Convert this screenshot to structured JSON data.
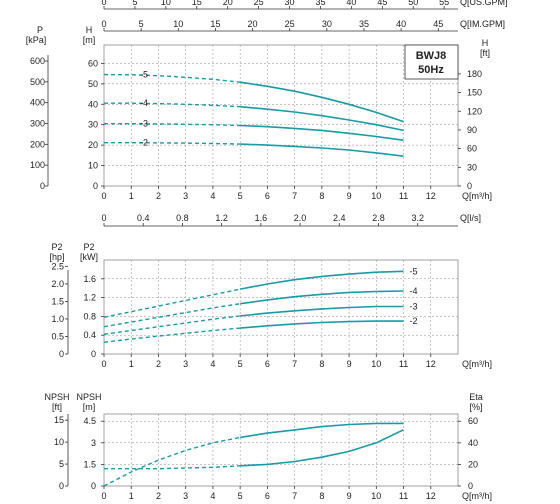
{
  "chart_data": [
    {
      "type": "line",
      "model_label": "BWJ8",
      "freq_label": "50Hz",
      "top_axes": [
        {
          "label": "Q[US.GPM]",
          "ticks": [
            0,
            5,
            10,
            15,
            20,
            25,
            30,
            35,
            40,
            45,
            50,
            55
          ]
        },
        {
          "label": "Q[IM.GPM]",
          "ticks": [
            0,
            5,
            10,
            15,
            20,
            25,
            30,
            35,
            40,
            45
          ]
        }
      ],
      "xlabel": "Q[m³/h]",
      "x_ticks": [
        0,
        1,
        2,
        3,
        4,
        5,
        6,
        7,
        8,
        9,
        10,
        11,
        12
      ],
      "xlim": [
        0,
        13
      ],
      "x2label": "Q[l/s]",
      "x2_ticks": [
        "0",
        "0.4",
        "0.8",
        "1.2",
        "1.6",
        "2.0",
        "2.4",
        "2.8",
        "3.2"
      ],
      "ylabel_p": "P [kPa]",
      "p_ticks": [
        0,
        100,
        200,
        300,
        400,
        500,
        600
      ],
      "ylabel": "H [m]",
      "ylim": [
        0,
        60
      ],
      "y_ticks": [
        0,
        10,
        20,
        30,
        40,
        50,
        60
      ],
      "ylabel_right": "H [ft]",
      "ft_ticks": [
        0,
        30,
        60,
        90,
        120,
        150,
        180
      ],
      "series": [
        {
          "name": "-5",
          "x": [
            0,
            1,
            2,
            3,
            4,
            5,
            6,
            7,
            8,
            9,
            10,
            11
          ],
          "y": [
            54.5,
            54.4,
            54.0,
            53.2,
            52.2,
            50.8,
            48.8,
            46.4,
            43.4,
            40.0,
            36.0,
            31.5
          ],
          "solid_from": 5
        },
        {
          "name": "-4",
          "x": [
            0,
            1,
            2,
            3,
            4,
            5,
            6,
            7,
            8,
            9,
            10,
            11
          ],
          "y": [
            40.5,
            40.5,
            40.3,
            40.0,
            39.5,
            38.8,
            37.6,
            36.2,
            34.4,
            32.3,
            30.0,
            27.2
          ],
          "solid_from": 5
        },
        {
          "name": "-3",
          "x": [
            0,
            1,
            2,
            3,
            4,
            5,
            6,
            7,
            8,
            9,
            10,
            11
          ],
          "y": [
            30.5,
            30.5,
            30.4,
            30.2,
            30.0,
            29.6,
            29.0,
            28.2,
            27.2,
            25.8,
            24.2,
            22.4
          ],
          "solid_from": 5
        },
        {
          "name": "-2",
          "x": [
            0,
            1,
            2,
            3,
            4,
            5,
            6,
            7,
            8,
            9,
            10,
            11
          ],
          "y": [
            21.2,
            21.2,
            21.1,
            21.0,
            20.8,
            20.5,
            20.0,
            19.4,
            18.6,
            17.6,
            16.2,
            14.6
          ],
          "solid_from": 5
        }
      ],
      "grid": true
    },
    {
      "type": "line",
      "xlabel": "Q[m³/h]",
      "x_ticks": [
        0,
        1,
        2,
        3,
        4,
        5,
        6,
        7,
        8,
        9,
        10,
        11,
        12
      ],
      "xlim": [
        0,
        13
      ],
      "ylabel_hp": "P2 [hp]",
      "hp_ticks": [
        "0",
        "0.5",
        "1.0",
        "1.5",
        "2.0",
        "2.5"
      ],
      "ylabel": "P2 [kW]",
      "ylim": [
        0,
        2.0
      ],
      "y_ticks": [
        "0",
        "0.4",
        "0.8",
        "1.2",
        "1.6"
      ],
      "series": [
        {
          "name": "-5",
          "x": [
            0,
            1,
            2,
            3,
            4,
            5,
            6,
            7,
            8,
            9,
            10,
            11
          ],
          "y": [
            0.78,
            0.9,
            1.02,
            1.14,
            1.26,
            1.38,
            1.49,
            1.58,
            1.65,
            1.7,
            1.74,
            1.76
          ],
          "solid_from": 5
        },
        {
          "name": "-4",
          "x": [
            0,
            1,
            2,
            3,
            4,
            5,
            6,
            7,
            8,
            9,
            10,
            11
          ],
          "y": [
            0.58,
            0.68,
            0.78,
            0.88,
            0.98,
            1.07,
            1.15,
            1.22,
            1.27,
            1.31,
            1.33,
            1.34
          ],
          "solid_from": 5
        },
        {
          "name": "-3",
          "x": [
            0,
            1,
            2,
            3,
            4,
            5,
            6,
            7,
            8,
            9,
            10,
            11
          ],
          "y": [
            0.42,
            0.5,
            0.58,
            0.66,
            0.74,
            0.81,
            0.87,
            0.92,
            0.96,
            0.99,
            1.01,
            1.01
          ],
          "solid_from": 5
        },
        {
          "name": "-2",
          "x": [
            0,
            1,
            2,
            3,
            4,
            5,
            6,
            7,
            8,
            9,
            10,
            11
          ],
          "y": [
            0.25,
            0.32,
            0.38,
            0.44,
            0.5,
            0.55,
            0.6,
            0.64,
            0.67,
            0.69,
            0.7,
            0.7
          ],
          "solid_from": 5
        }
      ],
      "grid": true
    },
    {
      "type": "line",
      "xlabel": "Q[m³/h]",
      "x_ticks": [
        0,
        1,
        2,
        3,
        4,
        5,
        6,
        7,
        8,
        9,
        10,
        11,
        12
      ],
      "xlim": [
        0,
        13
      ],
      "ylabel_ft": "NPSH [ft]",
      "ft_ticks": [
        0,
        5,
        10,
        15
      ],
      "ylabel": "NPSH [m]",
      "ylim": [
        0,
        5.0
      ],
      "y_ticks": [
        "0",
        "1.5",
        "3",
        "4.5"
      ],
      "ylabel_right": "Eta [%]",
      "eta_ticks": [
        0,
        20,
        40,
        60
      ],
      "eta_lim": [
        0,
        66.7
      ],
      "series": [
        {
          "name": "NPSH",
          "axis": "left",
          "x": [
            0,
            1,
            2,
            3,
            4,
            5,
            6,
            7,
            8,
            9,
            10,
            11
          ],
          "y": [
            1.2,
            1.2,
            1.2,
            1.25,
            1.3,
            1.4,
            1.5,
            1.7,
            2.0,
            2.4,
            3.0,
            3.9
          ],
          "solid_from": 5
        },
        {
          "name": "Eta",
          "axis": "right",
          "x": [
            0,
            1,
            2,
            3,
            4,
            5,
            6,
            7,
            8,
            9,
            10,
            11
          ],
          "y": [
            0,
            13,
            24,
            33,
            40,
            45,
            49,
            52,
            55,
            57,
            58,
            58
          ],
          "solid_from": 5
        }
      ],
      "grid": true
    }
  ]
}
